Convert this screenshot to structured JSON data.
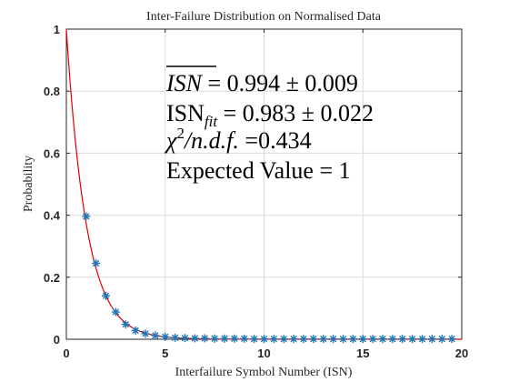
{
  "colors": {
    "fit_line": "#e00000",
    "markers": "#1f77b4",
    "axis": "#262626",
    "grid": "#dcdcdc"
  },
  "chart_data": {
    "type": "scatter",
    "title": "Inter-Failure Distribution on Normalised Data",
    "xlabel": "Interfailure Symbol Number (ISN)",
    "ylabel": "Probability",
    "xlim": [
      0,
      20
    ],
    "ylim": [
      0,
      1
    ],
    "x_ticks": [
      "0",
      "5",
      "10",
      "15",
      "20"
    ],
    "y_ticks": [
      "0",
      "0.2",
      "0.4",
      "0.6",
      "0.8",
      "1"
    ],
    "grid": true,
    "series": [
      {
        "kind": "markers",
        "marker": "asterisk",
        "x": [
          1,
          1.5,
          2,
          2.5,
          3,
          3.5,
          4,
          4.5,
          5,
          5.5,
          6,
          6.5,
          7,
          7.5,
          8,
          8.5,
          9,
          9.5,
          10,
          10.5,
          11,
          11.5,
          12,
          12.5,
          13,
          13.5,
          14,
          14.5,
          15,
          15.5,
          16,
          16.5,
          17,
          17.5,
          18,
          18.5,
          19,
          19.5
        ],
        "y": [
          0.396,
          0.245,
          0.14,
          0.088,
          0.048,
          0.028,
          0.018,
          0.012,
          0.008,
          0.005,
          0.004,
          0.003,
          0.003,
          0.002,
          0.002,
          0.002,
          0.002,
          0.001,
          0.001,
          0.001,
          0.001,
          0.001,
          0.001,
          0.001,
          0.001,
          0.001,
          0.001,
          0.001,
          0.001,
          0.001,
          0.001,
          0.001,
          0.001,
          0.001,
          0.001,
          0.001,
          0.001,
          0.001
        ]
      },
      {
        "kind": "fit-line",
        "function": "exponential",
        "amplitude": 1,
        "decay_rate": 0.983,
        "x_range": [
          0,
          20
        ]
      }
    ],
    "annotations": [
      {
        "prefix": "",
        "italic": "ISN",
        "overline": true,
        "suffix": " = 0.994 ± 0.009"
      },
      {
        "prefix": "ISN",
        "sub": "fit",
        "suffix": " = 0.983 ± 0.022"
      },
      {
        "prefix": "",
        "italic": "χ",
        "sup": "2",
        "italic2": "/n.d.f.",
        "suffix": " =0.434"
      },
      {
        "prefix": "Expected Value = 1"
      }
    ]
  }
}
